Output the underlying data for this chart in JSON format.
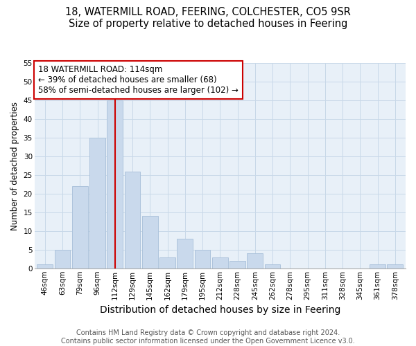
{
  "title": "18, WATERMILL ROAD, FEERING, COLCHESTER, CO5 9SR",
  "subtitle": "Size of property relative to detached houses in Feering",
  "xlabel": "Distribution of detached houses by size in Feering",
  "ylabel": "Number of detached properties",
  "bar_labels": [
    "46sqm",
    "63sqm",
    "79sqm",
    "96sqm",
    "112sqm",
    "129sqm",
    "145sqm",
    "162sqm",
    "179sqm",
    "195sqm",
    "212sqm",
    "228sqm",
    "245sqm",
    "262sqm",
    "278sqm",
    "295sqm",
    "311sqm",
    "328sqm",
    "345sqm",
    "361sqm",
    "378sqm"
  ],
  "bar_values": [
    1,
    5,
    22,
    35,
    45,
    26,
    14,
    3,
    8,
    5,
    3,
    2,
    4,
    1,
    0,
    0,
    0,
    0,
    0,
    1,
    1
  ],
  "bar_color": "#c9d9ec",
  "bar_edgecolor": "#adc4dc",
  "vline_x_index": 4,
  "vline_color": "#cc0000",
  "annotation_line1": "18 WATERMILL ROAD: 114sqm",
  "annotation_line2": "← 39% of detached houses are smaller (68)",
  "annotation_line3": "58% of semi-detached houses are larger (102) →",
  "annotation_box_facecolor": "#ffffff",
  "annotation_box_edgecolor": "#cc0000",
  "ylim": [
    0,
    55
  ],
  "yticks": [
    0,
    5,
    10,
    15,
    20,
    25,
    30,
    35,
    40,
    45,
    50,
    55
  ],
  "footer1": "Contains HM Land Registry data © Crown copyright and database right 2024.",
  "footer2": "Contains public sector information licensed under the Open Government Licence v3.0.",
  "title_fontsize": 10.5,
  "subtitle_fontsize": 9.5,
  "xlabel_fontsize": 10,
  "ylabel_fontsize": 8.5,
  "tick_fontsize": 7.5,
  "annotation_fontsize": 8.5,
  "footer_fontsize": 7,
  "plot_bg_color": "#e8f0f8",
  "fig_bg_color": "#ffffff",
  "grid_color": "#c8d8e8"
}
